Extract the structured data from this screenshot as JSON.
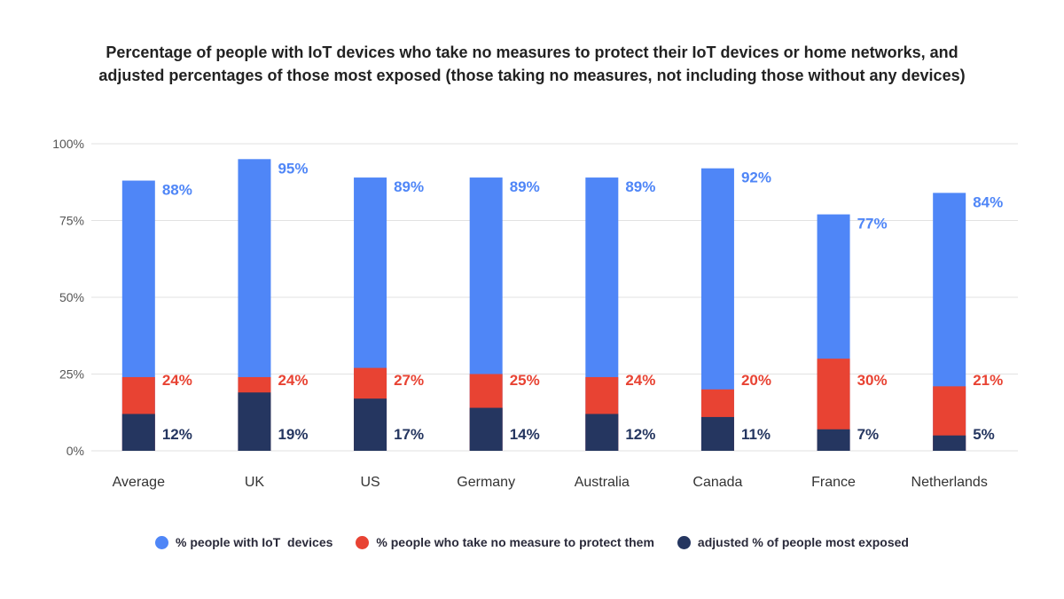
{
  "chart_data": {
    "type": "bar",
    "title_line1": "Percentage of people with IoT devices who take no measures to protect their IoT devices or home networks, and",
    "title_line2": "adjusted percentages of those most exposed (those taking no measures, not including those without any devices)",
    "categories": [
      "Average",
      "UK",
      "US",
      "Germany",
      "Australia",
      "Canada",
      "France",
      "Netherlands"
    ],
    "series": [
      {
        "name": "% people with IoT  devices",
        "color": "#4f86f7",
        "values": [
          88,
          95,
          89,
          89,
          89,
          92,
          77,
          84
        ]
      },
      {
        "name": "% people who take no measure to protect them",
        "color": "#e84333",
        "values": [
          24,
          24,
          27,
          25,
          24,
          20,
          30,
          21
        ]
      },
      {
        "name": "adjusted % of people most exposed",
        "color": "#253660",
        "values": [
          12,
          19,
          17,
          14,
          12,
          11,
          7,
          5
        ]
      }
    ],
    "yticks": [
      "0%",
      "25%",
      "50%",
      "75%",
      "100%"
    ],
    "ylim": [
      0,
      100
    ],
    "grid": true,
    "legend_position": "bottom"
  }
}
